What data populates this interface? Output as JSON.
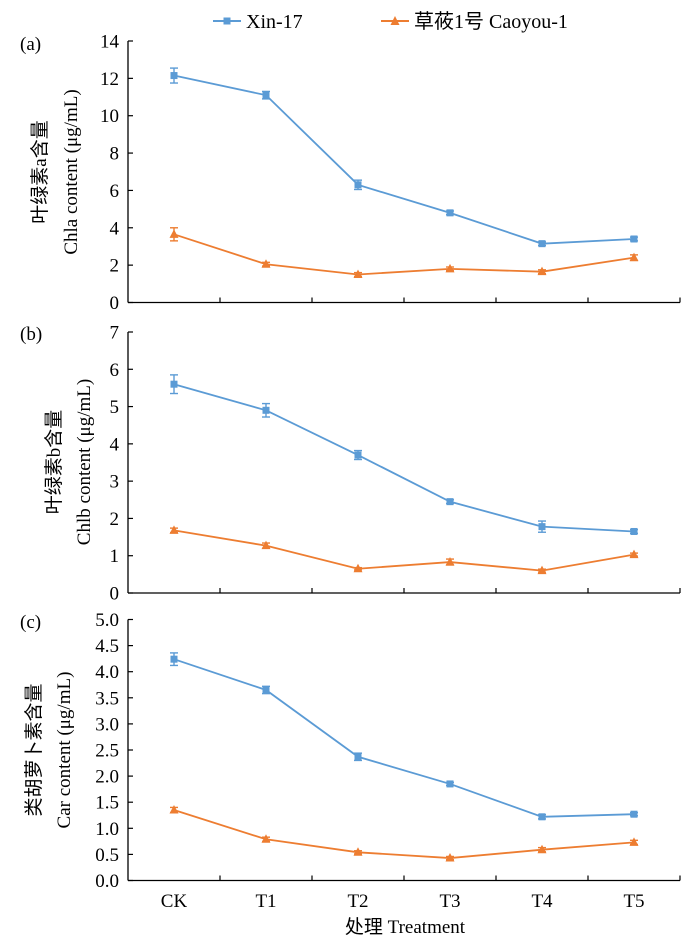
{
  "chart_data": {
    "type": "line",
    "legend": {
      "placement": "top-center",
      "entries": [
        {
          "name": "Xin-17",
          "color": "#5B9BD5",
          "marker": "square"
        },
        {
          "name": "草莜1号 Caoyou-1",
          "color": "#ED7D31",
          "marker": "triangle"
        }
      ]
    },
    "categories": [
      "CK",
      "T1",
      "T2",
      "T3",
      "T4",
      "T5"
    ],
    "xlabel": "处理 Treatment",
    "grid": false,
    "panels": [
      {
        "label": "(a)",
        "ylabel_cn": "叶绿素a含量",
        "ylabel_en": "Chla content (μg/mL)",
        "ylim": [
          0,
          14
        ],
        "yticks": [
          0,
          2,
          4,
          6,
          8,
          10,
          12,
          14
        ],
        "ytick_labels": [
          "0",
          "2",
          "4",
          "6",
          "8",
          "10",
          "12",
          "14"
        ],
        "series": [
          {
            "name": "Xin-17",
            "values": [
              12.15,
              11.1,
              6.3,
              4.8,
              3.15,
              3.4
            ],
            "errors": [
              0.4,
              0.2,
              0.25,
              0.1,
              0.1,
              0.1
            ]
          },
          {
            "name": "草莜1号 Caoyou-1",
            "values": [
              3.65,
              2.05,
              1.5,
              1.8,
              1.65,
              2.4
            ],
            "errors": [
              0.35,
              0.1,
              0.1,
              0.1,
              0.1,
              0.15
            ]
          }
        ]
      },
      {
        "label": "(b)",
        "ylabel_cn": "叶绿素b含量",
        "ylabel_en": "Chlb content (μg/mL)",
        "ylim": [
          0,
          7
        ],
        "yticks": [
          0,
          1,
          2,
          3,
          4,
          5,
          6,
          7
        ],
        "ytick_labels": [
          "0",
          "1",
          "2",
          "3",
          "4",
          "5",
          "6",
          "7"
        ],
        "series": [
          {
            "name": "Xin-17",
            "values": [
              5.6,
              4.9,
              3.7,
              2.45,
              1.78,
              1.65
            ],
            "errors": [
              0.25,
              0.18,
              0.12,
              0.05,
              0.15,
              0.05
            ]
          },
          {
            "name": "草莜1号 Caoyou-1",
            "values": [
              1.68,
              1.27,
              0.65,
              0.83,
              0.6,
              1.03
            ],
            "errors": [
              0.06,
              0.07,
              0.03,
              0.08,
              0.04,
              0.04
            ]
          }
        ]
      },
      {
        "label": "(c)",
        "ylabel_cn": "类胡萝卜素含量",
        "ylabel_en": "Car content (μg/mL)",
        "ylim": [
          0,
          5
        ],
        "yticks": [
          0,
          0.5,
          1,
          1.5,
          2,
          2.5,
          3,
          3.5,
          4,
          4.5,
          5
        ],
        "ytick_labels": [
          "0.0",
          "0.5",
          "1.0",
          "1.5",
          "2.0",
          "2.5",
          "3.0",
          "3.5",
          "4.0",
          "4.5",
          "5.0"
        ],
        "series": [
          {
            "name": "Xin-17",
            "values": [
              4.24,
              3.65,
              2.37,
              1.85,
              1.22,
              1.27
            ],
            "errors": [
              0.12,
              0.07,
              0.07,
              0.03,
              0.04,
              0.03
            ]
          },
          {
            "name": "草莜1号 Caoyou-1",
            "values": [
              1.35,
              0.79,
              0.54,
              0.43,
              0.59,
              0.73
            ],
            "errors": [
              0.05,
              0.04,
              0.03,
              0.03,
              0.04,
              0.04
            ]
          }
        ]
      }
    ]
  }
}
